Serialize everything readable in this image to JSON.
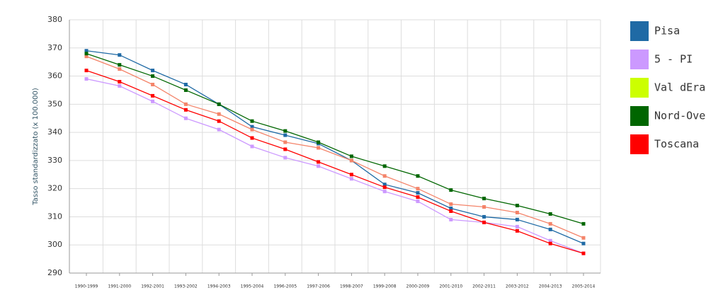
{
  "chart_data": {
    "type": "line",
    "y_label": "Tasso standardizzato (x 100.000)",
    "categories": [
      "1990-1999",
      "1991-2000",
      "1992-2001",
      "1993-2002",
      "1994-2003",
      "1995-2004",
      "1996-2005",
      "1997-2006",
      "1998-2007",
      "1999-2008",
      "2000-2009",
      "2001-2010",
      "2002-2011",
      "2003-2012",
      "2004-2013",
      "2005-2014"
    ],
    "series": [
      {
        "name": "Pisa",
        "color": "#1f6aa5",
        "values": [
          369,
          367.5,
          362,
          357,
          350,
          342,
          339,
          336,
          330,
          321.5,
          318.5,
          313,
          310,
          309,
          305.5,
          300.5
        ]
      },
      {
        "name": "5 - PI",
        "color": "#cc99ff",
        "values": [
          359,
          356.5,
          351,
          345,
          341,
          335,
          331,
          328,
          323.5,
          319,
          315.5,
          309,
          308,
          306.5,
          301.5,
          297
        ]
      },
      {
        "name": "Val dEra",
        "color": "#ccff00",
        "line_color": "#f4846a",
        "values": [
          367,
          362.5,
          357,
          350,
          346.5,
          341,
          336.5,
          334.5,
          330,
          324.5,
          320,
          314.5,
          313.5,
          311.5,
          307.5,
          302.5
        ]
      },
      {
        "name": "Nord-Ovest",
        "color": "#006600",
        "values": [
          368,
          364,
          360,
          355,
          350,
          344,
          340.5,
          336.5,
          331.5,
          328,
          324.5,
          319.5,
          316.5,
          314,
          311,
          307.5
        ]
      },
      {
        "name": "Toscana",
        "color": "#ff0000",
        "values": [
          362,
          358,
          353,
          348,
          344,
          338,
          334,
          329.5,
          325,
          320.5,
          317,
          312,
          308,
          305,
          300.5,
          297
        ]
      }
    ],
    "ylim": [
      290,
      380
    ],
    "yticks": [
      290,
      300,
      310,
      320,
      330,
      340,
      350,
      360,
      370,
      380
    ],
    "grid": true,
    "legend": "right"
  }
}
